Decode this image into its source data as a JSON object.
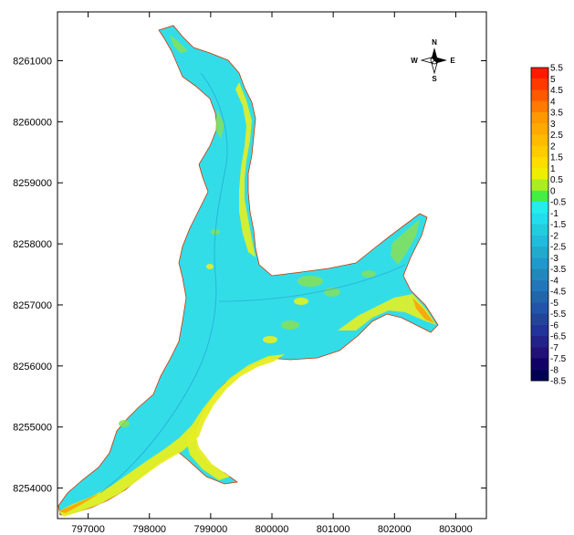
{
  "map": {
    "x_ticks": [
      "797000",
      "798000",
      "799000",
      "800000",
      "801000",
      "802000",
      "803000"
    ],
    "y_ticks": [
      "8254000",
      "8255000",
      "8256000",
      "8257000",
      "8258000",
      "8259000",
      "8260000",
      "8261000"
    ],
    "x_tick_values": [
      797000,
      798000,
      799000,
      800000,
      801000,
      802000,
      803000
    ],
    "y_tick_values": [
      8254000,
      8255000,
      8256000,
      8257000,
      8258000,
      8259000,
      8260000,
      8261000
    ],
    "x_range": [
      796500,
      803500
    ],
    "y_range": [
      8253500,
      8261800
    ],
    "compass": {
      "north": "N",
      "south": "S",
      "east": "E",
      "west": "W"
    },
    "legend": {
      "labels": [
        "5.5",
        "5",
        "4.5",
        "4",
        "3.5",
        "3",
        "2.5",
        "2",
        "1.5",
        "1",
        "0.5",
        "0",
        "-0.5",
        "-1",
        "-1.5",
        "-2",
        "-2.5",
        "-3",
        "-3.5",
        "-4",
        "-4.5",
        "-5",
        "-5.5",
        "-6",
        "-6.5",
        "-7",
        "-7.5",
        "-8",
        "-8.5"
      ],
      "colors": [
        "#ff1a00",
        "#ff3a00",
        "#ff5a00",
        "#ff7a00",
        "#ff9900",
        "#ffaa00",
        "#ffbb00",
        "#ffcc00",
        "#ffdd00",
        "#eeee00",
        "#aaee22",
        "#44ee44",
        "#22eeee",
        "#22ddee",
        "#22ccdd",
        "#22bbdd",
        "#22aacc",
        "#2299cc",
        "#2288bb",
        "#2277bb",
        "#2266aa",
        "#2255aa",
        "#224499",
        "#223399",
        "#222288",
        "#221177",
        "#110066",
        "#000055"
      ]
    },
    "colors": {
      "water": "#33dde8",
      "shallow": "#e6ee22",
      "shore_warm": "#ff9900",
      "bank": "#88e055",
      "outline": "#cc3300"
    }
  }
}
